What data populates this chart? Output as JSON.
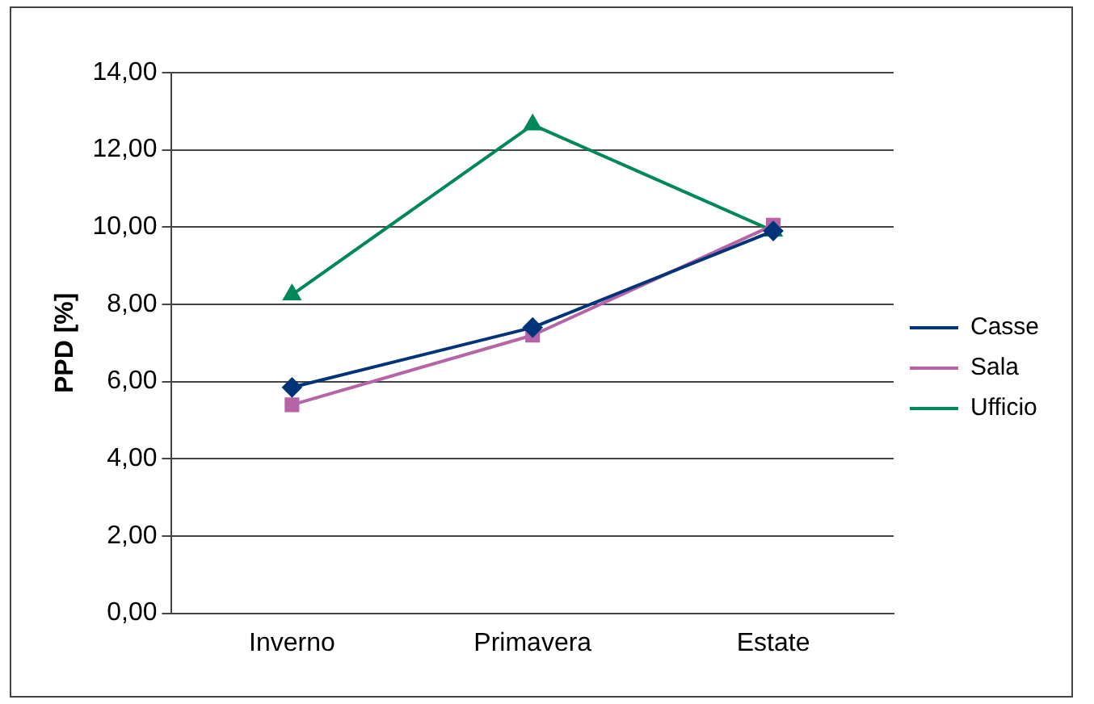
{
  "chart_data": {
    "type": "line",
    "ylabel": "PPD [%]",
    "categories": [
      "Inverno",
      "Primavera",
      "Estate"
    ],
    "series": [
      {
        "name": "Casse",
        "color": "#003478",
        "marker": "diamond",
        "values": [
          5.85,
          7.4,
          9.9
        ]
      },
      {
        "name": "Sala",
        "color": "#b664a8",
        "marker": "square",
        "values": [
          5.4,
          7.2,
          10.05
        ]
      },
      {
        "name": "Ufficio",
        "color": "#00875a",
        "marker": "triangle",
        "values": [
          8.25,
          12.65,
          9.9
        ]
      }
    ],
    "ylim": [
      0,
      14
    ],
    "yticks": [
      {
        "value": 0,
        "label": "0,00"
      },
      {
        "value": 2,
        "label": "2,00"
      },
      {
        "value": 4,
        "label": "4,00"
      },
      {
        "value": 6,
        "label": "6,00"
      },
      {
        "value": 8,
        "label": "8,00"
      },
      {
        "value": 10,
        "label": "10,00"
      },
      {
        "value": 12,
        "label": "12,00"
      },
      {
        "value": 14,
        "label": "14,00"
      }
    ],
    "grid": "y",
    "legend": "right",
    "line_style": "solid"
  }
}
